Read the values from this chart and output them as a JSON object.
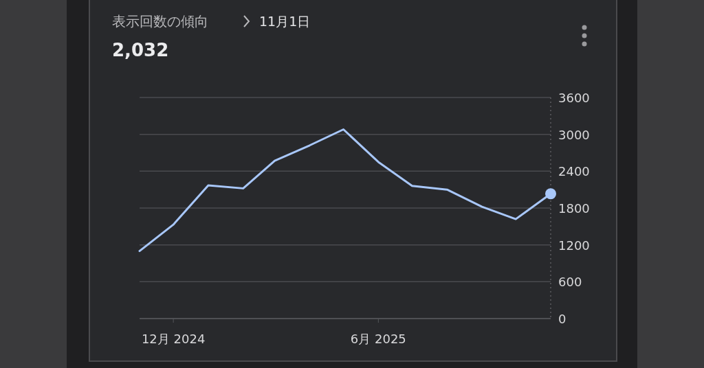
{
  "chart_data": {
    "type": "line",
    "title": "表示回数の傾向",
    "subtitle": "11月1日",
    "x": [
      "2024-11-01",
      "2024-12-01",
      "2025-01-01",
      "2025-02-01",
      "2025-03-01",
      "2025-04-01",
      "2025-05-01",
      "2025-06-01",
      "2025-07-01",
      "2025-08-01",
      "2025-09-01",
      "2025-10-01",
      "2025-11-01"
    ],
    "series": [
      {
        "color": "#a8c7fa",
        "values": [
          1100,
          1530,
          2170,
          2120,
          2570,
          2820,
          3080,
          2550,
          2160,
          2100,
          1820,
          1620,
          2032
        ]
      }
    ],
    "annotations": [
      "2,032"
    ],
    "xlim": [
      "2024-11-01",
      "2025-11-01"
    ],
    "xticks": [
      {
        "value": "2024-12-01",
        "label": "12月 2024"
      },
      {
        "value": "2025-06-01",
        "label": "6月 2025"
      }
    ],
    "ylim": [
      0,
      3600
    ],
    "yticks": [
      0,
      600,
      1200,
      1800,
      2400,
      3000,
      3600
    ],
    "grid": "y",
    "marker": "none",
    "line_style": "solid"
  }
}
